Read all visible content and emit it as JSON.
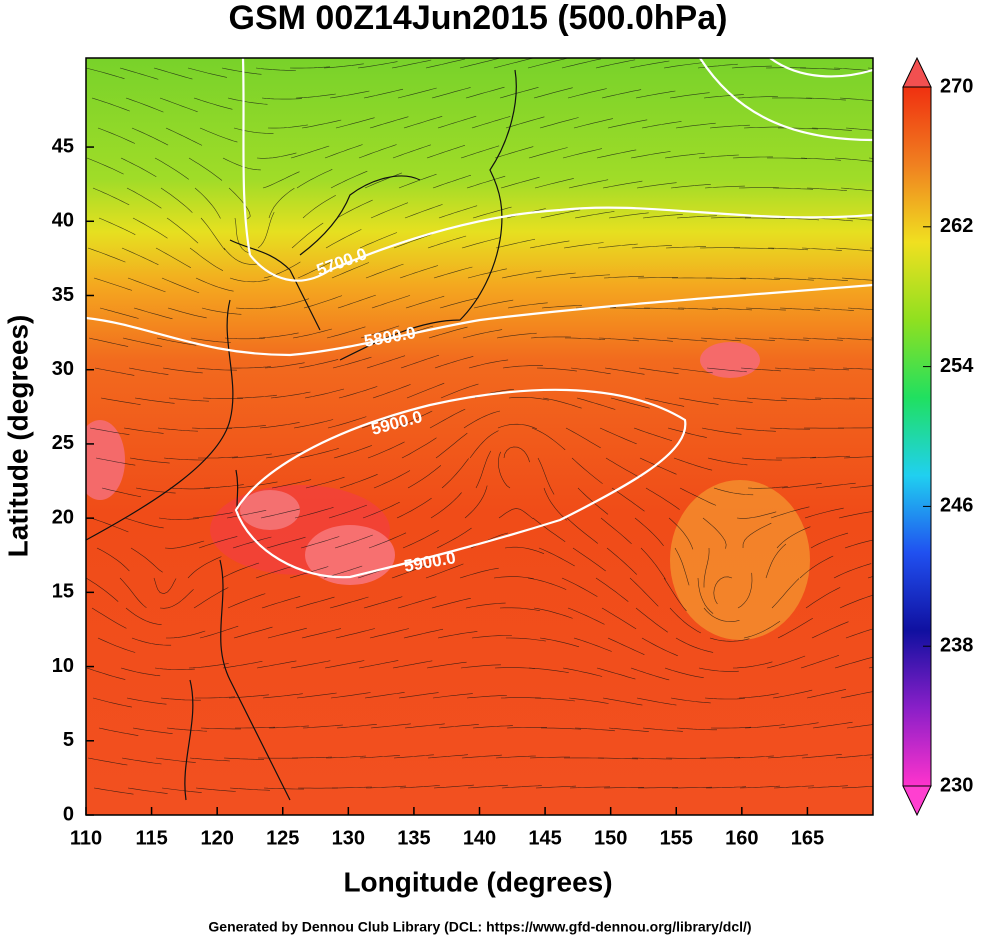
{
  "title": "GSM 00Z14Jun2015 (500.0hPa)",
  "x_axis": {
    "label": "Longitude (degrees)",
    "lim": [
      110,
      170
    ],
    "ticks": [
      110,
      115,
      120,
      125,
      130,
      135,
      140,
      145,
      150,
      155,
      160,
      165
    ]
  },
  "y_axis": {
    "label": "Latitude  (degrees)",
    "lim": [
      0,
      51
    ],
    "ticks": [
      0,
      5,
      10,
      15,
      20,
      25,
      30,
      35,
      40,
      45
    ]
  },
  "colorbar": {
    "lim": [
      230,
      270
    ],
    "ticks": [
      230,
      238,
      246,
      254,
      262,
      270
    ],
    "colors": [
      "#ff33cc",
      "#8a1fc8",
      "#1010a0",
      "#2050f0",
      "#20d0f0",
      "#20e060",
      "#90e020",
      "#f0e020",
      "#f08020",
      "#f03010"
    ]
  },
  "contours": [
    {
      "label": "5700.0"
    },
    {
      "label": "5800.0"
    },
    {
      "label": "5900.0"
    },
    {
      "label": "5900.0"
    }
  ],
  "footer": "Generated by Dennou Club Library (DCL: https://www.gfd-dennou.org/library/dcl/)"
}
